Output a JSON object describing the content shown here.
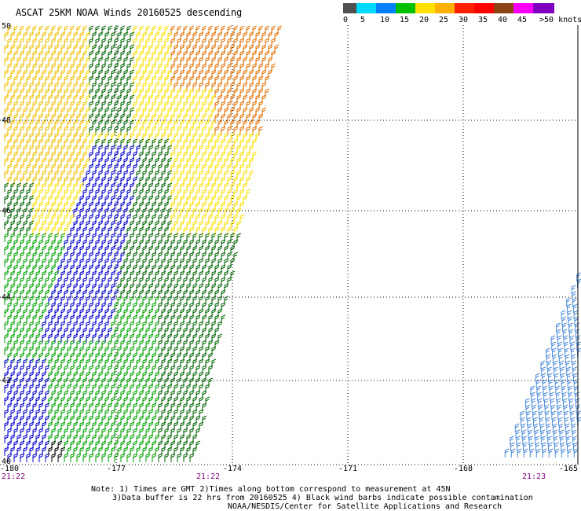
{
  "title": "ASCAT 25KM NOAA Winds 20160525 descending",
  "legend": {
    "labels": [
      "0",
      "5",
      "10",
      "15",
      "20",
      "25",
      "30",
      "35",
      "40",
      "45",
      ">50 knots"
    ],
    "colors": [
      "#505050",
      "#00d8ff",
      "#0080ff",
      "#00c000",
      "#ffe000",
      "#ffb000",
      "#ff2000",
      "#ff0000",
      "#8b4513",
      "#ff00ff",
      "#8000c0"
    ]
  },
  "map": {
    "lat_labels": [
      "50",
      "48",
      "46",
      "44",
      "42",
      "40"
    ],
    "lon_labels": [
      "-180",
      "-177",
      "-174",
      "-171",
      "-168",
      "-165"
    ],
    "time_labels": [
      "21:22",
      "21:22",
      "21:23"
    ],
    "barb_colors": {
      "blue": "#0000cc",
      "green": "#00a000",
      "dark_green": "#006400",
      "yellow": "#ffe000",
      "gold": "#f0c000",
      "orange": "#e07000",
      "light_blue": "#4a8ad8",
      "black": "#000000"
    }
  },
  "notes": {
    "line1": "Note: 1) Times are GMT 2)Times along bottom correspond to measurement at 45N",
    "line2": "3)Data buffer is 22 hrs from 20160525 4) Black wind barbs indicate possible contamination",
    "line3": "NOAA/NESDIS/Center for Satellite Applications and Research"
  }
}
